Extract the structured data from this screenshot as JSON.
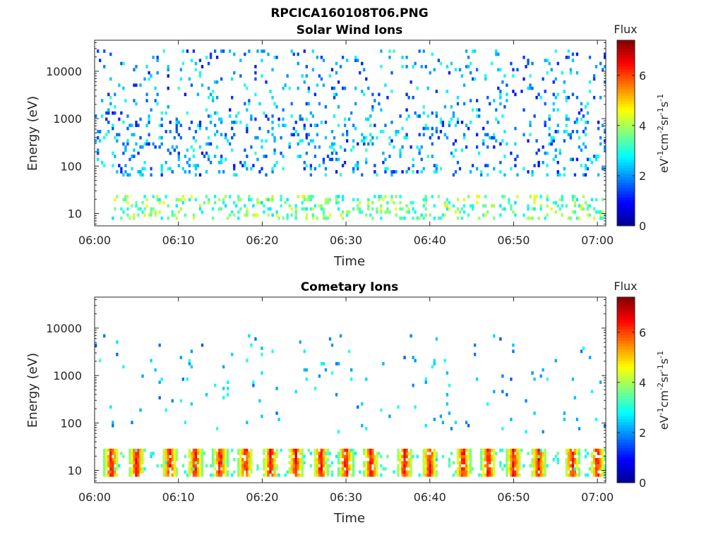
{
  "figure": {
    "title": "RPCICA160108T06.PNG"
  },
  "colormap": [
    "#00008f",
    "#0000ff",
    "#0080ff",
    "#00ffff",
    "#80ff80",
    "#ffff00",
    "#ff8000",
    "#ff0000",
    "#800000"
  ],
  "chart_data": [
    {
      "type": "heatmap",
      "title": "Solar Wind Ions",
      "xlabel": "Time",
      "ylabel": "Energy (eV)",
      "x_ticks": [
        "06:00",
        "06:10",
        "06:20",
        "06:30",
        "06:40",
        "06:50",
        "07:00"
      ],
      "xlim": [
        "06:00",
        "07:01"
      ],
      "y_ticks": [
        "10",
        "100",
        "1000",
        "10000"
      ],
      "ylim": [
        5.5,
        45000
      ],
      "yscale": "log",
      "colorbar": {
        "label": "Flux",
        "unit": "eV-1cm-2sr-1s-1",
        "ticks": [
          "0",
          "2",
          "4",
          "6"
        ],
        "range": [
          0,
          7.4
        ]
      },
      "features": [
        {
          "kind": "band",
          "energy_range": [
            8,
            24
          ],
          "flux_range": [
            2.5,
            4.6
          ],
          "note_start": "06:05"
        },
        {
          "kind": "scatter",
          "energy_range": [
            60,
            30000
          ],
          "flux_range": [
            1.0,
            3.2
          ]
        }
      ]
    },
    {
      "type": "heatmap",
      "title": "Cometary Ions",
      "xlabel": "Time",
      "ylabel": "Energy (eV)",
      "x_ticks": [
        "06:00",
        "06:10",
        "06:20",
        "06:30",
        "06:40",
        "06:50",
        "07:00"
      ],
      "xlim": [
        "06:00",
        "07:01"
      ],
      "y_ticks": [
        "10",
        "100",
        "1000",
        "10000"
      ],
      "ylim": [
        5.5,
        45000
      ],
      "yscale": "log",
      "colorbar": {
        "label": "Flux",
        "unit": "eV-1cm-2sr-1s-1",
        "ticks": [
          "0",
          "2",
          "4",
          "6"
        ],
        "range": [
          0,
          7.4
        ]
      },
      "features": [
        {
          "kind": "periodic_bursts",
          "energy_range": [
            7,
            30
          ],
          "flux_range": [
            3.5,
            7.0
          ],
          "burst_times": [
            "06:02",
            "06:05",
            "06:09",
            "06:12",
            "06:15",
            "06:18",
            "06:21",
            "06:24",
            "06:27",
            "06:30",
            "06:33",
            "06:37",
            "06:40",
            "06:44",
            "06:47",
            "06:50",
            "06:53",
            "06:57",
            "07:00"
          ]
        },
        {
          "kind": "scatter",
          "energy_range": [
            60,
            8000
          ],
          "flux_range": [
            1.5,
            3.2
          ]
        }
      ]
    }
  ]
}
